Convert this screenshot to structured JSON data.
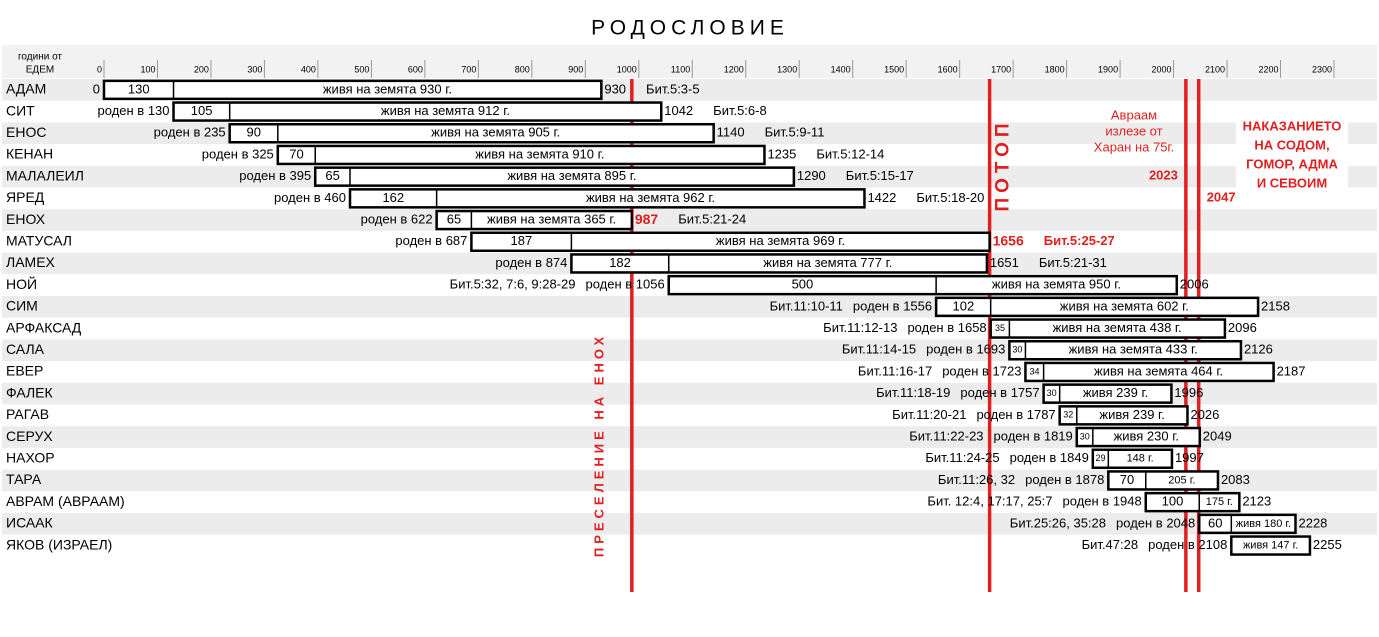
{
  "chart_data": {
    "type": "timeline",
    "title": "РОДОСЛОВИЕ",
    "axis_label": [
      "години от",
      "ЕДЕМ"
    ],
    "xlim": [
      0,
      2300
    ],
    "xticks": [
      0,
      100,
      200,
      300,
      400,
      500,
      600,
      700,
      800,
      900,
      1000,
      1100,
      1200,
      1300,
      1400,
      1500,
      1600,
      1700,
      1800,
      1900,
      2000,
      2100,
      2200,
      2300
    ],
    "bar_color": "#000000",
    "marker_color": "#e02020",
    "rows": [
      {
        "name": "АДАМ",
        "born": 0,
        "born_label": "0",
        "son_age": 130,
        "lifespan": 930,
        "lifespan_label": "живя на земята 930 г.",
        "death": 930,
        "ref": "Бит.5:3-5"
      },
      {
        "name": "СИТ",
        "born": 130,
        "born_label": "роден в 130",
        "son_age": 105,
        "lifespan": 912,
        "lifespan_label": "живя на земята 912 г.",
        "death": 1042,
        "ref": "Бит.5:6-8"
      },
      {
        "name": "ЕНОС",
        "born": 235,
        "born_label": "роден в 235",
        "son_age": 90,
        "lifespan": 905,
        "lifespan_label": "живя на земята 905 г.",
        "death": 1140,
        "ref": "Бит.5:9-11"
      },
      {
        "name": "КЕНАН",
        "born": 325,
        "born_label": "роден в 325",
        "son_age": 70,
        "lifespan": 910,
        "lifespan_label": "живя на земята 910 г.",
        "death": 1235,
        "ref": "Бит.5:12-14"
      },
      {
        "name": "МАЛАЛЕИЛ",
        "born": 395,
        "born_label": "роден в 395",
        "son_age": 65,
        "lifespan": 895,
        "lifespan_label": "живя на земята 895 г.",
        "death": 1290,
        "ref": "Бит.5:15-17"
      },
      {
        "name": "ЯРЕД",
        "born": 460,
        "born_label": "роден в 460",
        "son_age": 162,
        "lifespan": 962,
        "lifespan_label": "живя на земята 962 г.",
        "death": 1422,
        "ref": "Бит.5:18-20"
      },
      {
        "name": "ЕНОХ",
        "born": 622,
        "born_label": "роден в 622",
        "son_age": 65,
        "lifespan": 365,
        "lifespan_label": "живя на земята 365 г.",
        "death": 987,
        "ref": "Бит.5:21-24",
        "death_color": "#e02020"
      },
      {
        "name": "МАТУСАЛ",
        "born": 687,
        "born_label": "роден в 687",
        "son_age": 187,
        "lifespan": 969,
        "lifespan_label": "живя на земята 969 г.",
        "death": 1656,
        "ref": "Бит.5:25-27",
        "death_color": "#e02020",
        "ref_color": "#e02020"
      },
      {
        "name": "ЛАМЕХ",
        "born": 874,
        "born_label": "роден в 874",
        "son_age": 182,
        "lifespan": 777,
        "lifespan_label": "живя на земята 777 г.",
        "death": 1651,
        "ref": "Бит.5:21-31"
      },
      {
        "name": "НОЙ",
        "born": 1056,
        "born_label": "роден в 1056",
        "son_age": 500,
        "lifespan": 950,
        "lifespan_label": "живя на земята 950 г.",
        "death": 2006,
        "ref": "Бит.5:32, 7:6, 9:28-29"
      },
      {
        "name": "СИМ",
        "born": 1556,
        "born_label": "роден в 1556",
        "son_age": 102,
        "lifespan": 602,
        "lifespan_label": "живя на земята 602 г.",
        "death": 2158,
        "ref": "Бит.11:10-11"
      },
      {
        "name": "АРФАКСАД",
        "born": 1658,
        "born_label": "роден в 1658",
        "son_age": 35,
        "lifespan": 438,
        "lifespan_label": "живя на земята 438 г.",
        "death": 2096,
        "ref": "Бит.11:12-13"
      },
      {
        "name": "САЛА",
        "born": 1693,
        "born_label": "роден в 1693",
        "son_age": 30,
        "lifespan": 433,
        "lifespan_label": "живя на земята 433 г.",
        "death": 2126,
        "ref": "Бит.11:14-15"
      },
      {
        "name": "ЕВЕР",
        "born": 1723,
        "born_label": "роден в 1723",
        "son_age": 34,
        "lifespan": 464,
        "lifespan_label": "живя на земята 464 г.",
        "death": 2187,
        "ref": "Бит.11:16-17"
      },
      {
        "name": "ФАЛЕК",
        "born": 1757,
        "born_label": "роден в 1757",
        "son_age": 30,
        "lifespan": 239,
        "lifespan_label": "живя 239 г.",
        "death": 1996,
        "ref": "Бит.11:18-19"
      },
      {
        "name": "РАГАВ",
        "born": 1787,
        "born_label": "роден в 1787",
        "son_age": 32,
        "lifespan": 239,
        "lifespan_label": "живя 239 г.",
        "death": 2026,
        "ref": "Бит.11:20-21"
      },
      {
        "name": "СЕРУХ",
        "born": 1819,
        "born_label": "роден в 1819",
        "son_age": 30,
        "lifespan": 230,
        "lifespan_label": "живя 230 г.",
        "death": 2049,
        "ref": "Бит.11:22-23"
      },
      {
        "name": "НАХОР",
        "born": 1849,
        "born_label": "роден в 1849",
        "son_age": 29,
        "lifespan": 148,
        "lifespan_label": "148 г.",
        "death": 1997,
        "ref": "Бит.11:24-25"
      },
      {
        "name": "ТАРА",
        "born": 1878,
        "born_label": "роден в 1878",
        "son_age": 70,
        "lifespan": 205,
        "lifespan_label": "205 г.",
        "death": 2083,
        "ref": "Бит.11:26, 32"
      },
      {
        "name": "АВРАМ (АВРААМ)",
        "born": 1948,
        "born_label": "роден в 1948",
        "son_age": 100,
        "lifespan": 175,
        "lifespan_label": "175 г.",
        "death": 2123,
        "ref": "Бит. 12:4, 17:17, 25:7"
      },
      {
        "name": "ИСААК",
        "born": 2048,
        "born_label": "роден в 2048",
        "son_age": 60,
        "lifespan": 180,
        "lifespan_label": "живя 180 г.",
        "death": 2228,
        "ref": "Бит.25:26, 35:28"
      },
      {
        "name": "ЯКОВ (ИЗРАЕЛ)",
        "born": 2108,
        "born_label": "роден в 2108",
        "son_age": null,
        "lifespan": 147,
        "lifespan_label": "живя 147 г.",
        "death": 2255,
        "ref": "Бит.47:28"
      }
    ],
    "markers": [
      {
        "year": 987,
        "label": "ПРЕСЕЛЕНИЕ НА ЕНОХ"
      },
      {
        "year": 1656,
        "label": "ПОТОП"
      },
      {
        "year": 2023,
        "label": "2023"
      },
      {
        "year": 2047,
        "label": "2047"
      }
    ],
    "annotations": [
      {
        "lines": [
          "Авраам",
          "излезе от",
          "Харан на 75г."
        ]
      },
      {
        "lines": [
          "НАКАЗАНИЕТО",
          "НА СОДОМ,",
          "ГОМОР, АДМА",
          "И СЕВОИМ"
        ]
      }
    ]
  }
}
